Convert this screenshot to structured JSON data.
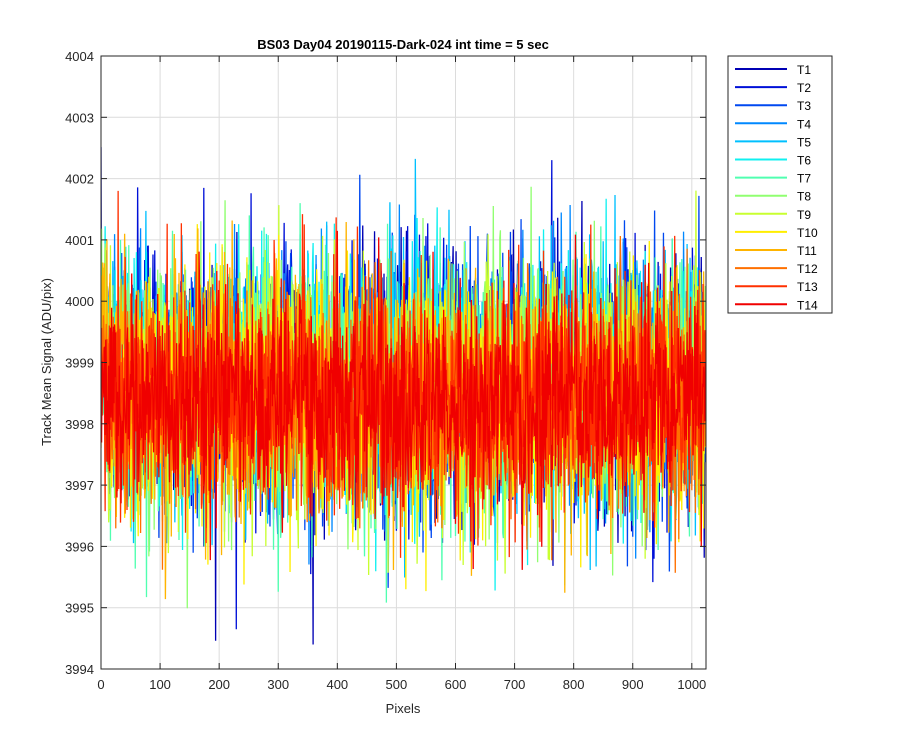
{
  "chart_data": {
    "type": "line",
    "title": "BS03 Day04 20190115-Dark-024 int time = 5 sec",
    "xlabel": "Pixels",
    "ylabel": "Track Mean Signal (ADU/pix)",
    "xlim": [
      0,
      1024
    ],
    "ylim": [
      3994,
      4004
    ],
    "xticks": [
      "0",
      "100",
      "200",
      "300",
      "400",
      "500",
      "600",
      "700",
      "800",
      "900",
      "1000"
    ],
    "yticks": [
      "3994",
      "3995",
      "3996",
      "3997",
      "3998",
      "3999",
      "4000",
      "4001",
      "4002",
      "4003",
      "4004"
    ],
    "grid": true,
    "legend_position": "outside-top-right",
    "x_range_points": [
      0,
      1023
    ],
    "series": [
      {
        "name": "T1",
        "color": "#0000b4",
        "mean": 3998.7,
        "noise_sd": 1.05
      },
      {
        "name": "T2",
        "color": "#0010d8",
        "mean": 3998.7,
        "noise_sd": 1.05
      },
      {
        "name": "T3",
        "color": "#0048f0",
        "mean": 3998.7,
        "noise_sd": 1.05
      },
      {
        "name": "T4",
        "color": "#0088ff",
        "mean": 3998.7,
        "noise_sd": 1.0
      },
      {
        "name": "T5",
        "color": "#00c0ff",
        "mean": 3998.7,
        "noise_sd": 1.0
      },
      {
        "name": "T6",
        "color": "#10f0f0",
        "mean": 3998.7,
        "noise_sd": 1.0
      },
      {
        "name": "T7",
        "color": "#50ffb0",
        "mean": 3998.6,
        "noise_sd": 1.0
      },
      {
        "name": "T8",
        "color": "#90ff70",
        "mean": 3998.6,
        "noise_sd": 1.0
      },
      {
        "name": "T9",
        "color": "#c8ff30",
        "mean": 3998.5,
        "noise_sd": 1.0
      },
      {
        "name": "T10",
        "color": "#ffee00",
        "mean": 3998.5,
        "noise_sd": 1.0
      },
      {
        "name": "T11",
        "color": "#ffb400",
        "mean": 3998.5,
        "noise_sd": 0.95
      },
      {
        "name": "T12",
        "color": "#ff7000",
        "mean": 3998.4,
        "noise_sd": 0.95
      },
      {
        "name": "T13",
        "color": "#ff3000",
        "mean": 3998.4,
        "noise_sd": 0.9
      },
      {
        "name": "T14",
        "color": "#f00000",
        "mean": 3998.4,
        "noise_sd": 0.85
      }
    ]
  }
}
